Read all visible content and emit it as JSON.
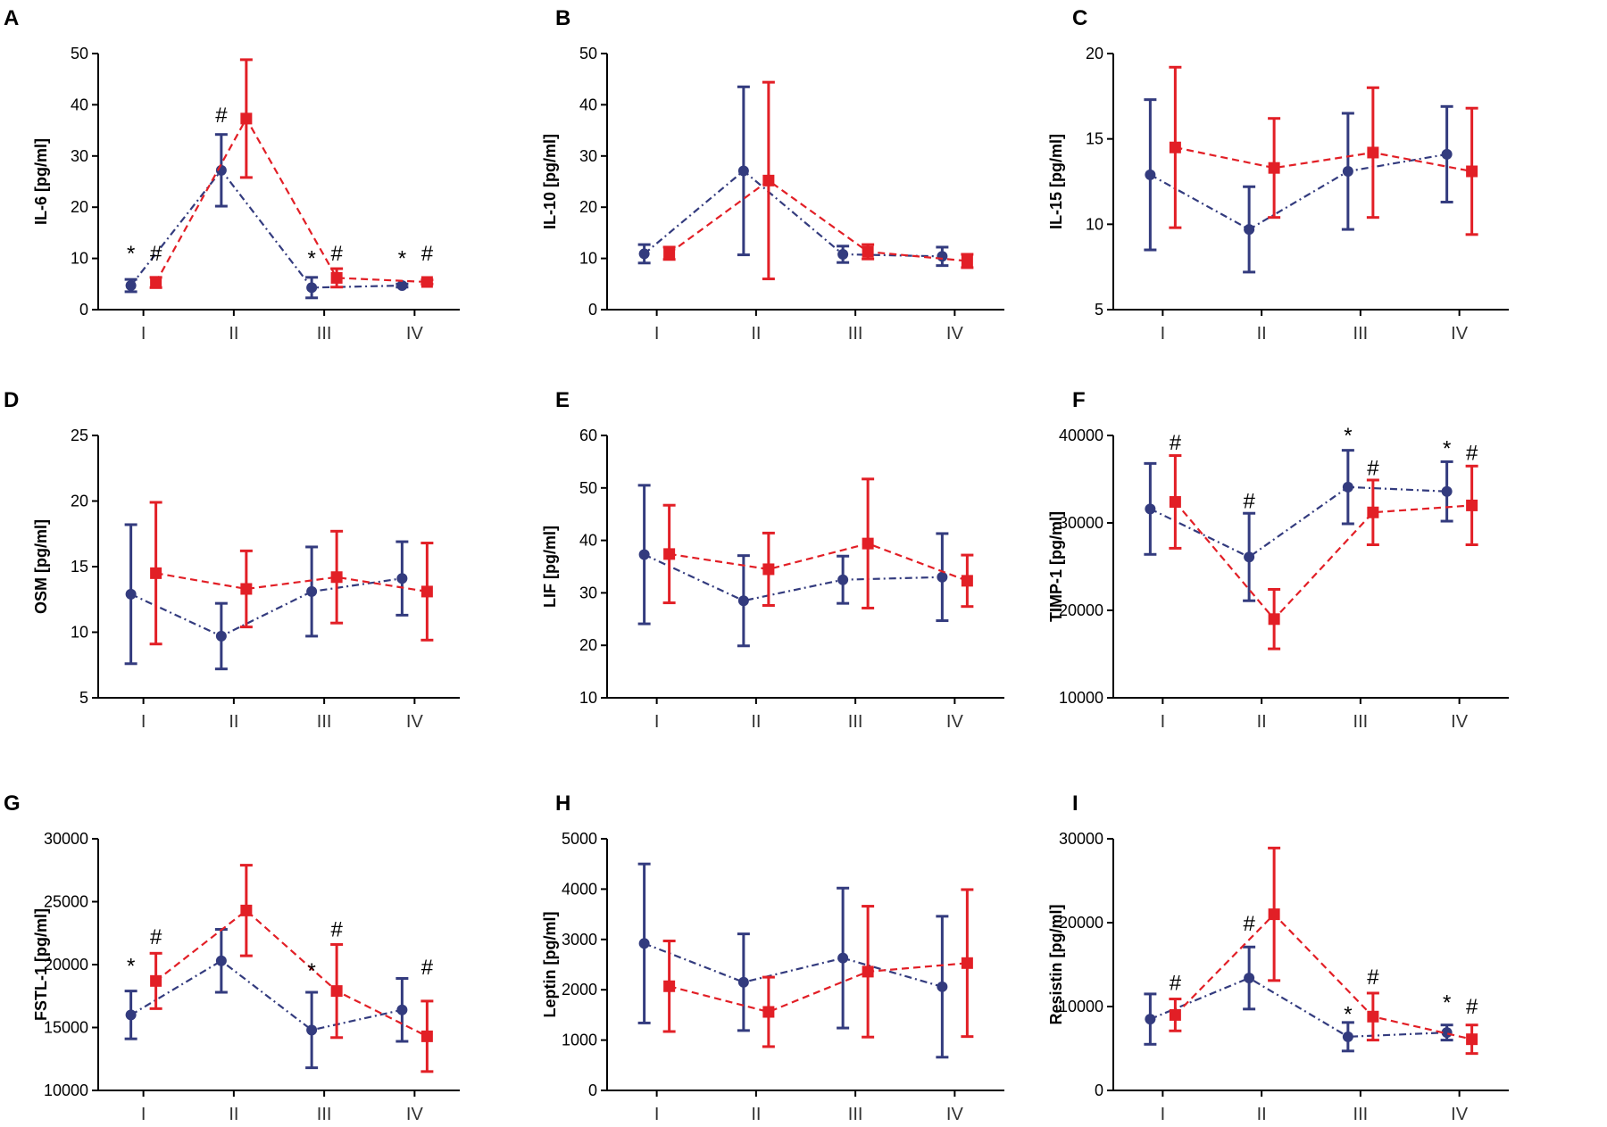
{
  "colors": {
    "blue": "#333b7e",
    "red": "#e21f26"
  },
  "chart_data": [
    {
      "type": "line",
      "panel": "A",
      "ylabel": "IL-6 [pg/ml]",
      "categories": [
        "I",
        "II",
        "III",
        "IV"
      ],
      "ylim": [
        0,
        50
      ],
      "yticks": [
        0,
        10,
        20,
        30,
        40,
        50
      ],
      "series": [
        {
          "name": "blue",
          "values": [
            4.7,
            27.2,
            4.3,
            4.7
          ],
          "errors": [
            1.2,
            7.0,
            2.0,
            0.3
          ]
        },
        {
          "name": "red",
          "values": [
            5.3,
            37.3,
            6.2,
            5.4
          ],
          "errors": [
            1.0,
            11.5,
            1.8,
            0.4
          ]
        }
      ],
      "annotations": [
        {
          "cat": 0,
          "series": "blue",
          "symbol": "*",
          "y": 11
        },
        {
          "cat": 0,
          "series": "red",
          "symbol": "#",
          "y": 11
        },
        {
          "cat": 1,
          "series": "blue",
          "symbol": "#",
          "y": 38
        },
        {
          "cat": 2,
          "series": "blue",
          "symbol": "*",
          "y": 10
        },
        {
          "cat": 2,
          "series": "red",
          "symbol": "#",
          "y": 11
        },
        {
          "cat": 3,
          "series": "blue",
          "symbol": "*",
          "y": 10
        },
        {
          "cat": 3,
          "series": "red",
          "symbol": "#",
          "y": 11
        }
      ]
    },
    {
      "type": "line",
      "panel": "B",
      "ylabel": "IL-10 [pg/ml]",
      "categories": [
        "I",
        "II",
        "III",
        "IV"
      ],
      "ylim": [
        0,
        50
      ],
      "yticks": [
        0,
        10,
        20,
        30,
        40,
        50
      ],
      "series": [
        {
          "name": "blue",
          "values": [
            10.9,
            27.1,
            10.8,
            10.4
          ],
          "errors": [
            1.8,
            16.4,
            1.6,
            1.8
          ]
        },
        {
          "name": "red",
          "values": [
            11.0,
            25.2,
            11.3,
            9.5
          ],
          "errors": [
            1.2,
            19.2,
            1.4,
            1.3
          ]
        }
      ],
      "annotations": []
    },
    {
      "type": "line",
      "panel": "C",
      "ylabel": "IL-15 [pg/ml]",
      "categories": [
        "I",
        "II",
        "III",
        "IV"
      ],
      "ylim": [
        5,
        20
      ],
      "yticks": [
        5,
        10,
        15,
        20
      ],
      "series": [
        {
          "name": "blue",
          "values": [
            12.9,
            9.7,
            13.1,
            14.1
          ],
          "errors": [
            4.4,
            2.5,
            3.4,
            2.8
          ]
        },
        {
          "name": "red",
          "values": [
            14.5,
            13.3,
            14.2,
            13.1
          ],
          "errors": [
            4.7,
            2.9,
            3.8,
            3.7
          ]
        }
      ],
      "annotations": []
    },
    {
      "type": "line",
      "panel": "D",
      "ylabel": "OSM [pg/ml]",
      "categories": [
        "I",
        "II",
        "III",
        "IV"
      ],
      "ylim": [
        5,
        25
      ],
      "yticks": [
        5,
        10,
        15,
        20,
        25
      ],
      "series": [
        {
          "name": "blue",
          "values": [
            12.9,
            9.7,
            13.1,
            14.1
          ],
          "errors": [
            5.3,
            2.5,
            3.4,
            2.8
          ]
        },
        {
          "name": "red",
          "values": [
            14.5,
            13.3,
            14.2,
            13.1
          ],
          "errors": [
            5.4,
            2.9,
            3.5,
            3.7
          ]
        }
      ],
      "annotations": []
    },
    {
      "type": "line",
      "panel": "E",
      "ylabel": "LIF [pg/ml]",
      "categories": [
        "I",
        "II",
        "III",
        "IV"
      ],
      "ylim": [
        10,
        60
      ],
      "yticks": [
        10,
        20,
        30,
        40,
        50,
        60
      ],
      "series": [
        {
          "name": "blue",
          "values": [
            37.3,
            28.5,
            32.5,
            33.0
          ],
          "errors": [
            13.2,
            8.6,
            4.5,
            8.3
          ]
        },
        {
          "name": "red",
          "values": [
            37.4,
            34.5,
            39.4,
            32.3
          ],
          "errors": [
            9.3,
            6.9,
            12.3,
            4.9
          ]
        }
      ],
      "annotations": []
    },
    {
      "type": "line",
      "panel": "F",
      "ylabel": "TIMP-1 [pg/ml]",
      "categories": [
        "I",
        "II",
        "III",
        "IV"
      ],
      "ylim": [
        10000,
        40000
      ],
      "yticks": [
        10000,
        20000,
        30000,
        40000
      ],
      "series": [
        {
          "name": "blue",
          "values": [
            31600,
            26100,
            34100,
            33600
          ],
          "errors": [
            5200,
            5000,
            4200,
            3400
          ]
        },
        {
          "name": "red",
          "values": [
            32400,
            19000,
            31200,
            32000
          ],
          "errors": [
            5300,
            3400,
            3700,
            4500
          ]
        }
      ],
      "annotations": [
        {
          "cat": 0,
          "series": "red",
          "symbol": "#",
          "y": 39200
        },
        {
          "cat": 1,
          "series": "blue",
          "symbol": "#",
          "y": 32500
        },
        {
          "cat": 2,
          "series": "blue",
          "symbol": "*",
          "y": 40000
        },
        {
          "cat": 2,
          "series": "red",
          "symbol": "#",
          "y": 36300
        },
        {
          "cat": 3,
          "series": "blue",
          "symbol": "*",
          "y": 38500
        },
        {
          "cat": 3,
          "series": "red",
          "symbol": "#",
          "y": 38000
        }
      ]
    },
    {
      "type": "line",
      "panel": "G",
      "ylabel": "FSTL-1 [pg/ml]",
      "categories": [
        "I",
        "II",
        "III",
        "IV"
      ],
      "ylim": [
        10000,
        30000
      ],
      "yticks": [
        10000,
        15000,
        20000,
        25000,
        30000
      ],
      "series": [
        {
          "name": "blue",
          "values": [
            16000,
            20300,
            14800,
            16400
          ],
          "errors": [
            1900,
            2500,
            3000,
            2500
          ]
        },
        {
          "name": "red",
          "values": [
            18700,
            24300,
            17900,
            14300
          ],
          "errors": [
            2200,
            3600,
            3700,
            2800
          ]
        }
      ],
      "annotations": [
        {
          "cat": 0,
          "series": "blue",
          "symbol": "*",
          "y": 19900
        },
        {
          "cat": 0,
          "series": "red",
          "symbol": "#",
          "y": 22200
        },
        {
          "cat": 2,
          "series": "blue",
          "symbol": "*",
          "y": 19500
        },
        {
          "cat": 2,
          "series": "red",
          "symbol": "#",
          "y": 22800
        },
        {
          "cat": 3,
          "series": "red",
          "symbol": "#",
          "y": 19800
        }
      ]
    },
    {
      "type": "line",
      "panel": "H",
      "ylabel": "Leptin [pg/ml]",
      "categories": [
        "I",
        "II",
        "III",
        "IV"
      ],
      "ylim": [
        0,
        5000
      ],
      "yticks": [
        0,
        1000,
        2000,
        3000,
        4000,
        5000
      ],
      "series": [
        {
          "name": "blue",
          "values": [
            2920,
            2150,
            2630,
            2060
          ],
          "errors": [
            1580,
            960,
            1390,
            1400
          ]
        },
        {
          "name": "red",
          "values": [
            2070,
            1560,
            2360,
            2530
          ],
          "errors": [
            900,
            690,
            1300,
            1460
          ]
        }
      ],
      "annotations": []
    },
    {
      "type": "line",
      "panel": "I",
      "ylabel": "Resistin [pg/ml]",
      "categories": [
        "I",
        "II",
        "III",
        "IV"
      ],
      "ylim": [
        0,
        30000
      ],
      "yticks": [
        0,
        10000,
        20000,
        30000
      ],
      "series": [
        {
          "name": "blue",
          "values": [
            8500,
            13400,
            6400,
            6900
          ],
          "errors": [
            3000,
            3700,
            1700,
            900
          ]
        },
        {
          "name": "red",
          "values": [
            9000,
            21000,
            8800,
            6100
          ],
          "errors": [
            1900,
            7900,
            2800,
            1700
          ]
        }
      ],
      "annotations": [
        {
          "cat": 0,
          "series": "red",
          "symbol": "#",
          "y": 12800
        },
        {
          "cat": 1,
          "series": "blue",
          "symbol": "#",
          "y": 19900
        },
        {
          "cat": 2,
          "series": "blue",
          "symbol": "*",
          "y": 9100
        },
        {
          "cat": 2,
          "series": "red",
          "symbol": "#",
          "y": 13500
        },
        {
          "cat": 3,
          "series": "blue",
          "symbol": "*",
          "y": 10500
        },
        {
          "cat": 3,
          "series": "red",
          "symbol": "#",
          "y": 10000
        }
      ]
    }
  ]
}
